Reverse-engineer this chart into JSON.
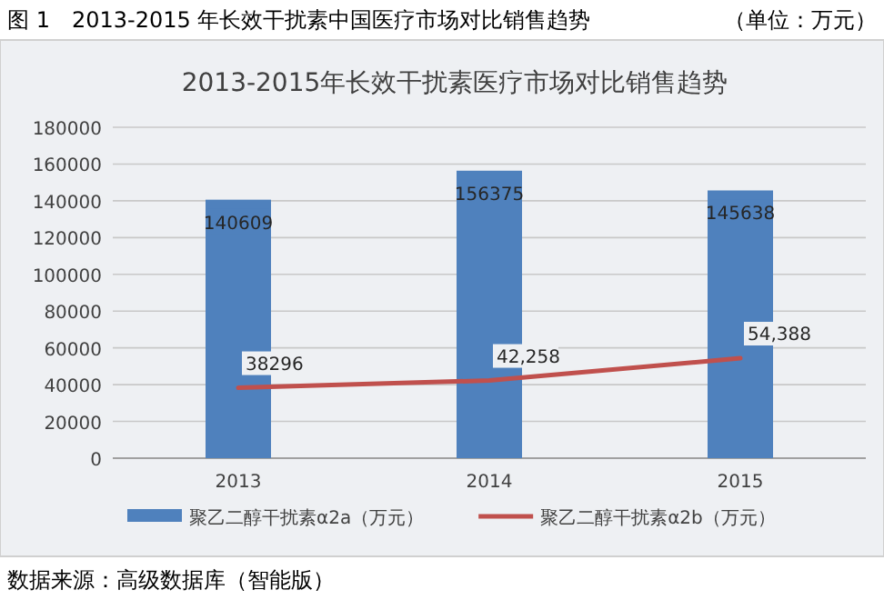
{
  "chart_data": {
    "type": "bar",
    "title": "2013-2015年长效干扰素医疗市场对比销售趋势",
    "categories": [
      "2013",
      "2014",
      "2015"
    ],
    "series": [
      {
        "name": "聚乙二醇干扰素α2a（万元）",
        "color": "#4f81bd",
        "values": [
          140609,
          156375,
          145638
        ],
        "value_labels": [
          "140609",
          "156375",
          "145638"
        ]
      },
      {
        "name": "聚乙二醇干扰素α2b（万元）",
        "type": "line",
        "color": "#c0504d",
        "values": [
          38296,
          42258,
          54388
        ],
        "value_labels": [
          "38296",
          "42,258",
          "54,388"
        ]
      }
    ],
    "ylim": [
      0,
      180000
    ],
    "yticks": [
      0,
      20000,
      40000,
      60000,
      80000,
      100000,
      120000,
      140000,
      160000,
      180000
    ],
    "grid": "y",
    "legend": "bottom",
    "annotations": [
      "图 1　2013-2015 年长效干扰素中国医疗市场对比销售趋势",
      "（单位：万元）",
      "数据来源：高级数据库（智能版）"
    ]
  }
}
